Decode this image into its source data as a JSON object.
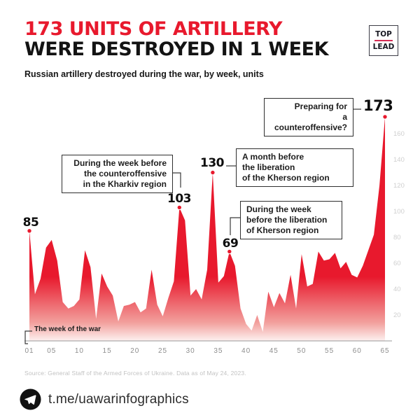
{
  "header": {
    "title_line1": "173 UNITS OF ARTILLERY",
    "title_line2": "WERE DESTROYED IN 1 WEEK",
    "logo_top": "TOP",
    "logo_bottom": "LEAD"
  },
  "subtitle": "Russian artillery destroyed during the war, by week, units",
  "chart_data": {
    "type": "area",
    "title": "Russian artillery destroyed during the war, by week, units",
    "xlabel": "The week of the war",
    "ylabel": "",
    "ylim": [
      0,
      180
    ],
    "grid": false,
    "y_axis_side": "right",
    "x_ticks": [
      "01",
      "05",
      "10",
      "15",
      "20",
      "25",
      "30",
      "35",
      "40",
      "45",
      "50",
      "55",
      "60",
      "65"
    ],
    "x_tick_weeks": [
      1,
      5,
      10,
      15,
      20,
      25,
      30,
      35,
      40,
      45,
      50,
      55,
      60,
      65
    ],
    "y_ticks": [
      160,
      140,
      120,
      100,
      80,
      60,
      40,
      20
    ],
    "weeks_start": 1,
    "values": [
      85,
      36,
      48,
      72,
      78,
      62,
      30,
      25,
      27,
      32,
      70,
      57,
      17,
      52,
      42,
      35,
      15,
      27,
      28,
      30,
      22,
      25,
      55,
      28,
      19,
      33,
      46,
      103,
      93,
      35,
      40,
      32,
      55,
      130,
      45,
      50,
      69,
      58,
      25,
      13,
      8,
      20,
      7,
      38,
      26,
      37,
      29,
      51,
      25,
      67,
      42,
      44,
      69,
      62,
      63,
      68,
      56,
      61,
      51,
      49,
      58,
      70,
      82,
      120,
      173
    ],
    "area_color": "#e8192d"
  },
  "peaks": [
    {
      "label": "85",
      "week": 1,
      "value": 85
    },
    {
      "label": "103",
      "week": 28,
      "value": 103
    },
    {
      "label": "130",
      "week": 34,
      "value": 130
    },
    {
      "label": "69",
      "week": 37,
      "value": 69
    },
    {
      "label": "173",
      "week": 65,
      "value": 173
    }
  ],
  "annotations": [
    {
      "text": "During the week before\nthe counteroffensive\nin the Kharkiv region"
    },
    {
      "text": "A month before\nthe liberation\nof the Kherson region"
    },
    {
      "text": "During the week\nbefore the liberation\nof Kherson region"
    },
    {
      "text": "Preparing for\na counteroffensive?"
    }
  ],
  "source": "Source: General Staff of the Armed Forces of Ukraine. Data as of May 24, 2023.",
  "footer": {
    "icon": "telegram-icon",
    "link": "t.me/uawarinfographics"
  }
}
